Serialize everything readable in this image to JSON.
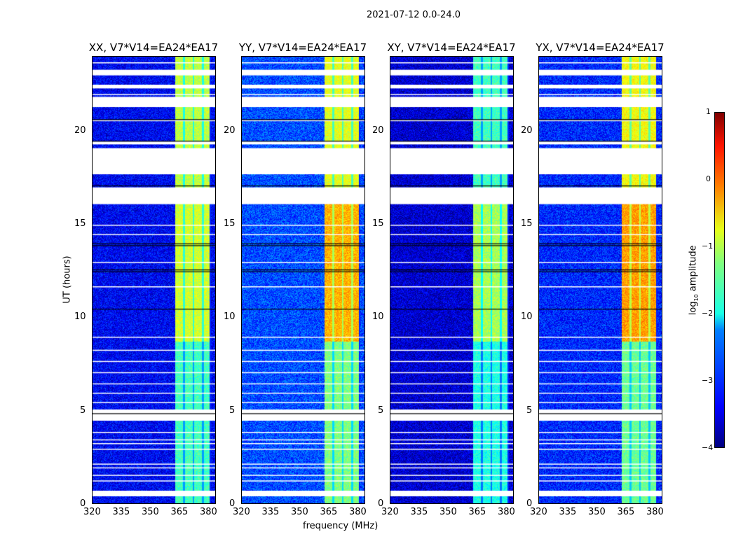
{
  "chart_data": {
    "type": "heatmap",
    "title": "2021-07-12 0.0-24.0",
    "xlabel": "frequency (MHz)",
    "ylabel": "UT (hours)",
    "xlim": [
      320,
      384
    ],
    "ylim": [
      0,
      24
    ],
    "xticks": [
      "320",
      "335",
      "350",
      "365",
      "380"
    ],
    "yticks": [
      "0",
      "5",
      "10",
      "15",
      "20"
    ],
    "colorbar": {
      "label": "log10 amplitude",
      "label_main": "log",
      "label_sub": "10",
      "label_rest": " amplitude",
      "range": [
        -4,
        1
      ],
      "ticks": [
        "1",
        "0",
        "−1",
        "−2",
        "−3",
        "−4"
      ],
      "colormap": "jet"
    },
    "panels": [
      {
        "title": "XX, V7*V14=EA24*EA17",
        "background_level": -3.4,
        "band_levels": {
          "early": -1.8,
          "mid": -1.1,
          "late": -1.2
        }
      },
      {
        "title": "YY, V7*V14=EA24*EA17",
        "background_level": -3.0,
        "band_levels": {
          "early": -1.5,
          "mid": -0.5,
          "late": -1.0
        }
      },
      {
        "title": "XY, V7*V14=EA24*EA17",
        "background_level": -3.6,
        "band_levels": {
          "early": -2.0,
          "mid": -1.3,
          "late": -1.8
        }
      },
      {
        "title": "YX, V7*V14=EA24*EA17",
        "background_level": -3.2,
        "band_levels": {
          "early": -1.6,
          "mid": -0.4,
          "late": -0.9
        }
      }
    ],
    "band_MHz": [
      363,
      381
    ],
    "subband_gaps_MHz": [
      367.5,
      372.5,
      377.5
    ],
    "flagged_UT_ranges": [
      [
        23.0,
        23.3
      ],
      [
        22.3,
        22.5
      ],
      [
        21.3,
        21.85
      ],
      [
        17.7,
        19.1
      ],
      [
        19.3,
        19.45
      ],
      [
        16.1,
        17.0
      ],
      [
        4.5,
        5.1
      ],
      [
        0.45,
        0.75
      ]
    ],
    "flagged_UT_lines": [
      23.7,
      22.0,
      20.6,
      15.0,
      14.5,
      13.0,
      11.7,
      9.0,
      8.3,
      7.7,
      7.1,
      6.5,
      6.0,
      5.5,
      3.9,
      3.5,
      3.3,
      3.0,
      2.2,
      2.0,
      1.6,
      1.3
    ],
    "dark_UT_lines": [
      20.65,
      19.5,
      17.1,
      14.0,
      13.9,
      12.6,
      12.5,
      10.5,
      4.9
    ]
  }
}
